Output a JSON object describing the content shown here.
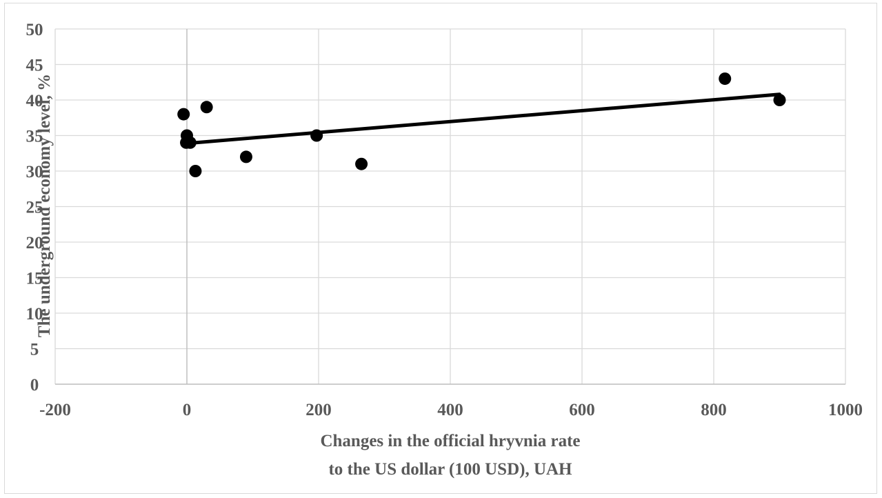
{
  "chart_data": {
    "type": "scatter",
    "xlabel": [
      "Changes in the official hryvnia rate",
      "to the US dollar (100 USD), UAH"
    ],
    "ylabel": "The underground economy level, %",
    "xlim": [
      -200,
      1000
    ],
    "ylim": [
      0,
      50
    ],
    "x_ticks": [
      -200,
      0,
      200,
      400,
      600,
      800,
      1000
    ],
    "y_ticks": [
      0,
      5,
      10,
      15,
      20,
      25,
      30,
      35,
      40,
      45,
      50
    ],
    "grid": true,
    "legend": "none",
    "series": [
      {
        "points": [
          {
            "x": -5,
            "y": 38
          },
          {
            "x": 0,
            "y": 35
          },
          {
            "x": -1,
            "y": 34
          },
          {
            "x": 5,
            "y": 34
          },
          {
            "x": 13,
            "y": 30
          },
          {
            "x": 30,
            "y": 39
          },
          {
            "x": 90,
            "y": 32
          },
          {
            "x": 197,
            "y": 35
          },
          {
            "x": 265,
            "y": 31
          },
          {
            "x": 817,
            "y": 43
          },
          {
            "x": 900,
            "y": 40
          }
        ],
        "color": "#000000"
      }
    ],
    "trendline": {
      "type": "linear",
      "x_start": 0,
      "y_start": 33.9,
      "x_end": 900,
      "y_end": 40.8,
      "color": "#000000"
    }
  }
}
